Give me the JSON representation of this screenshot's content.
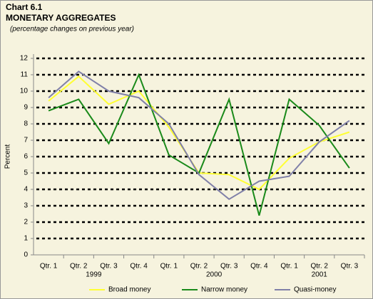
{
  "chart_data": {
    "type": "line",
    "title": "Chart 6.1",
    "subtitle": "MONETARY AGGREGATES",
    "note": "(percentage changes on previous year)",
    "y_label": "Percent",
    "categories": [
      "Qtr. 1",
      "Qtr. 2",
      "Qtr. 3",
      "Qtr. 4",
      "Qtr. 1",
      "Qtr. 2",
      "Qtr. 3",
      "Qtr. 4",
      "Qtr. 1",
      "Qtr. 2",
      "Qtr. 3"
    ],
    "category_groups": [
      "1999",
      "2000",
      "2001"
    ],
    "series": [
      {
        "name": "Broad money",
        "color": "#ffff33",
        "values": [
          9.4,
          10.9,
          9.2,
          10.0,
          7.8,
          5.0,
          4.9,
          4.0,
          5.9,
          6.9,
          7.5
        ]
      },
      {
        "name": "Narrow money",
        "color": "#1a8a1a",
        "values": [
          8.8,
          9.5,
          6.8,
          11.0,
          6.1,
          5.0,
          9.5,
          2.4,
          9.5,
          7.9,
          5.3
        ]
      },
      {
        "name": "Quasi-money",
        "color": "#8080a8",
        "values": [
          9.6,
          11.2,
          10.0,
          9.6,
          8.0,
          4.9,
          3.4,
          4.5,
          4.8,
          6.9,
          8.2
        ]
      }
    ],
    "ylim": [
      0,
      12
    ],
    "yticks": [
      0,
      1,
      2,
      3,
      4,
      5,
      6,
      7,
      8,
      9,
      10,
      11,
      12
    ],
    "grid": true,
    "legend": "bottom"
  }
}
